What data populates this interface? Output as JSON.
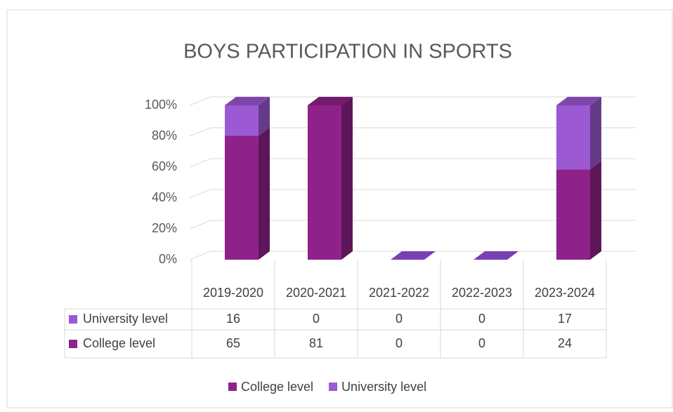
{
  "chart_data": {
    "type": "bar",
    "stacking": "percent",
    "title": "BOYS PARTICIPATION IN SPORTS",
    "categories": [
      "2019-2020",
      "2020-2021",
      "2021-2022",
      "2022-2023",
      "2023-2024"
    ],
    "series": [
      {
        "name": "College level",
        "color": "#8e2289",
        "values": [
          65,
          81,
          0,
          0,
          24
        ]
      },
      {
        "name": "University level",
        "color": "#9b59d3",
        "values": [
          16,
          0,
          0,
          0,
          17
        ]
      }
    ],
    "ylim": [
      0,
      100
    ],
    "yticks": [
      {
        "value": 0,
        "label": "0%"
      },
      {
        "value": 20,
        "label": "20%"
      },
      {
        "value": 40,
        "label": "40%"
      },
      {
        "value": 60,
        "label": "60%"
      },
      {
        "value": 80,
        "label": "80%"
      },
      {
        "value": 100,
        "label": "100%"
      }
    ],
    "grid": true,
    "legend": "bottom"
  }
}
